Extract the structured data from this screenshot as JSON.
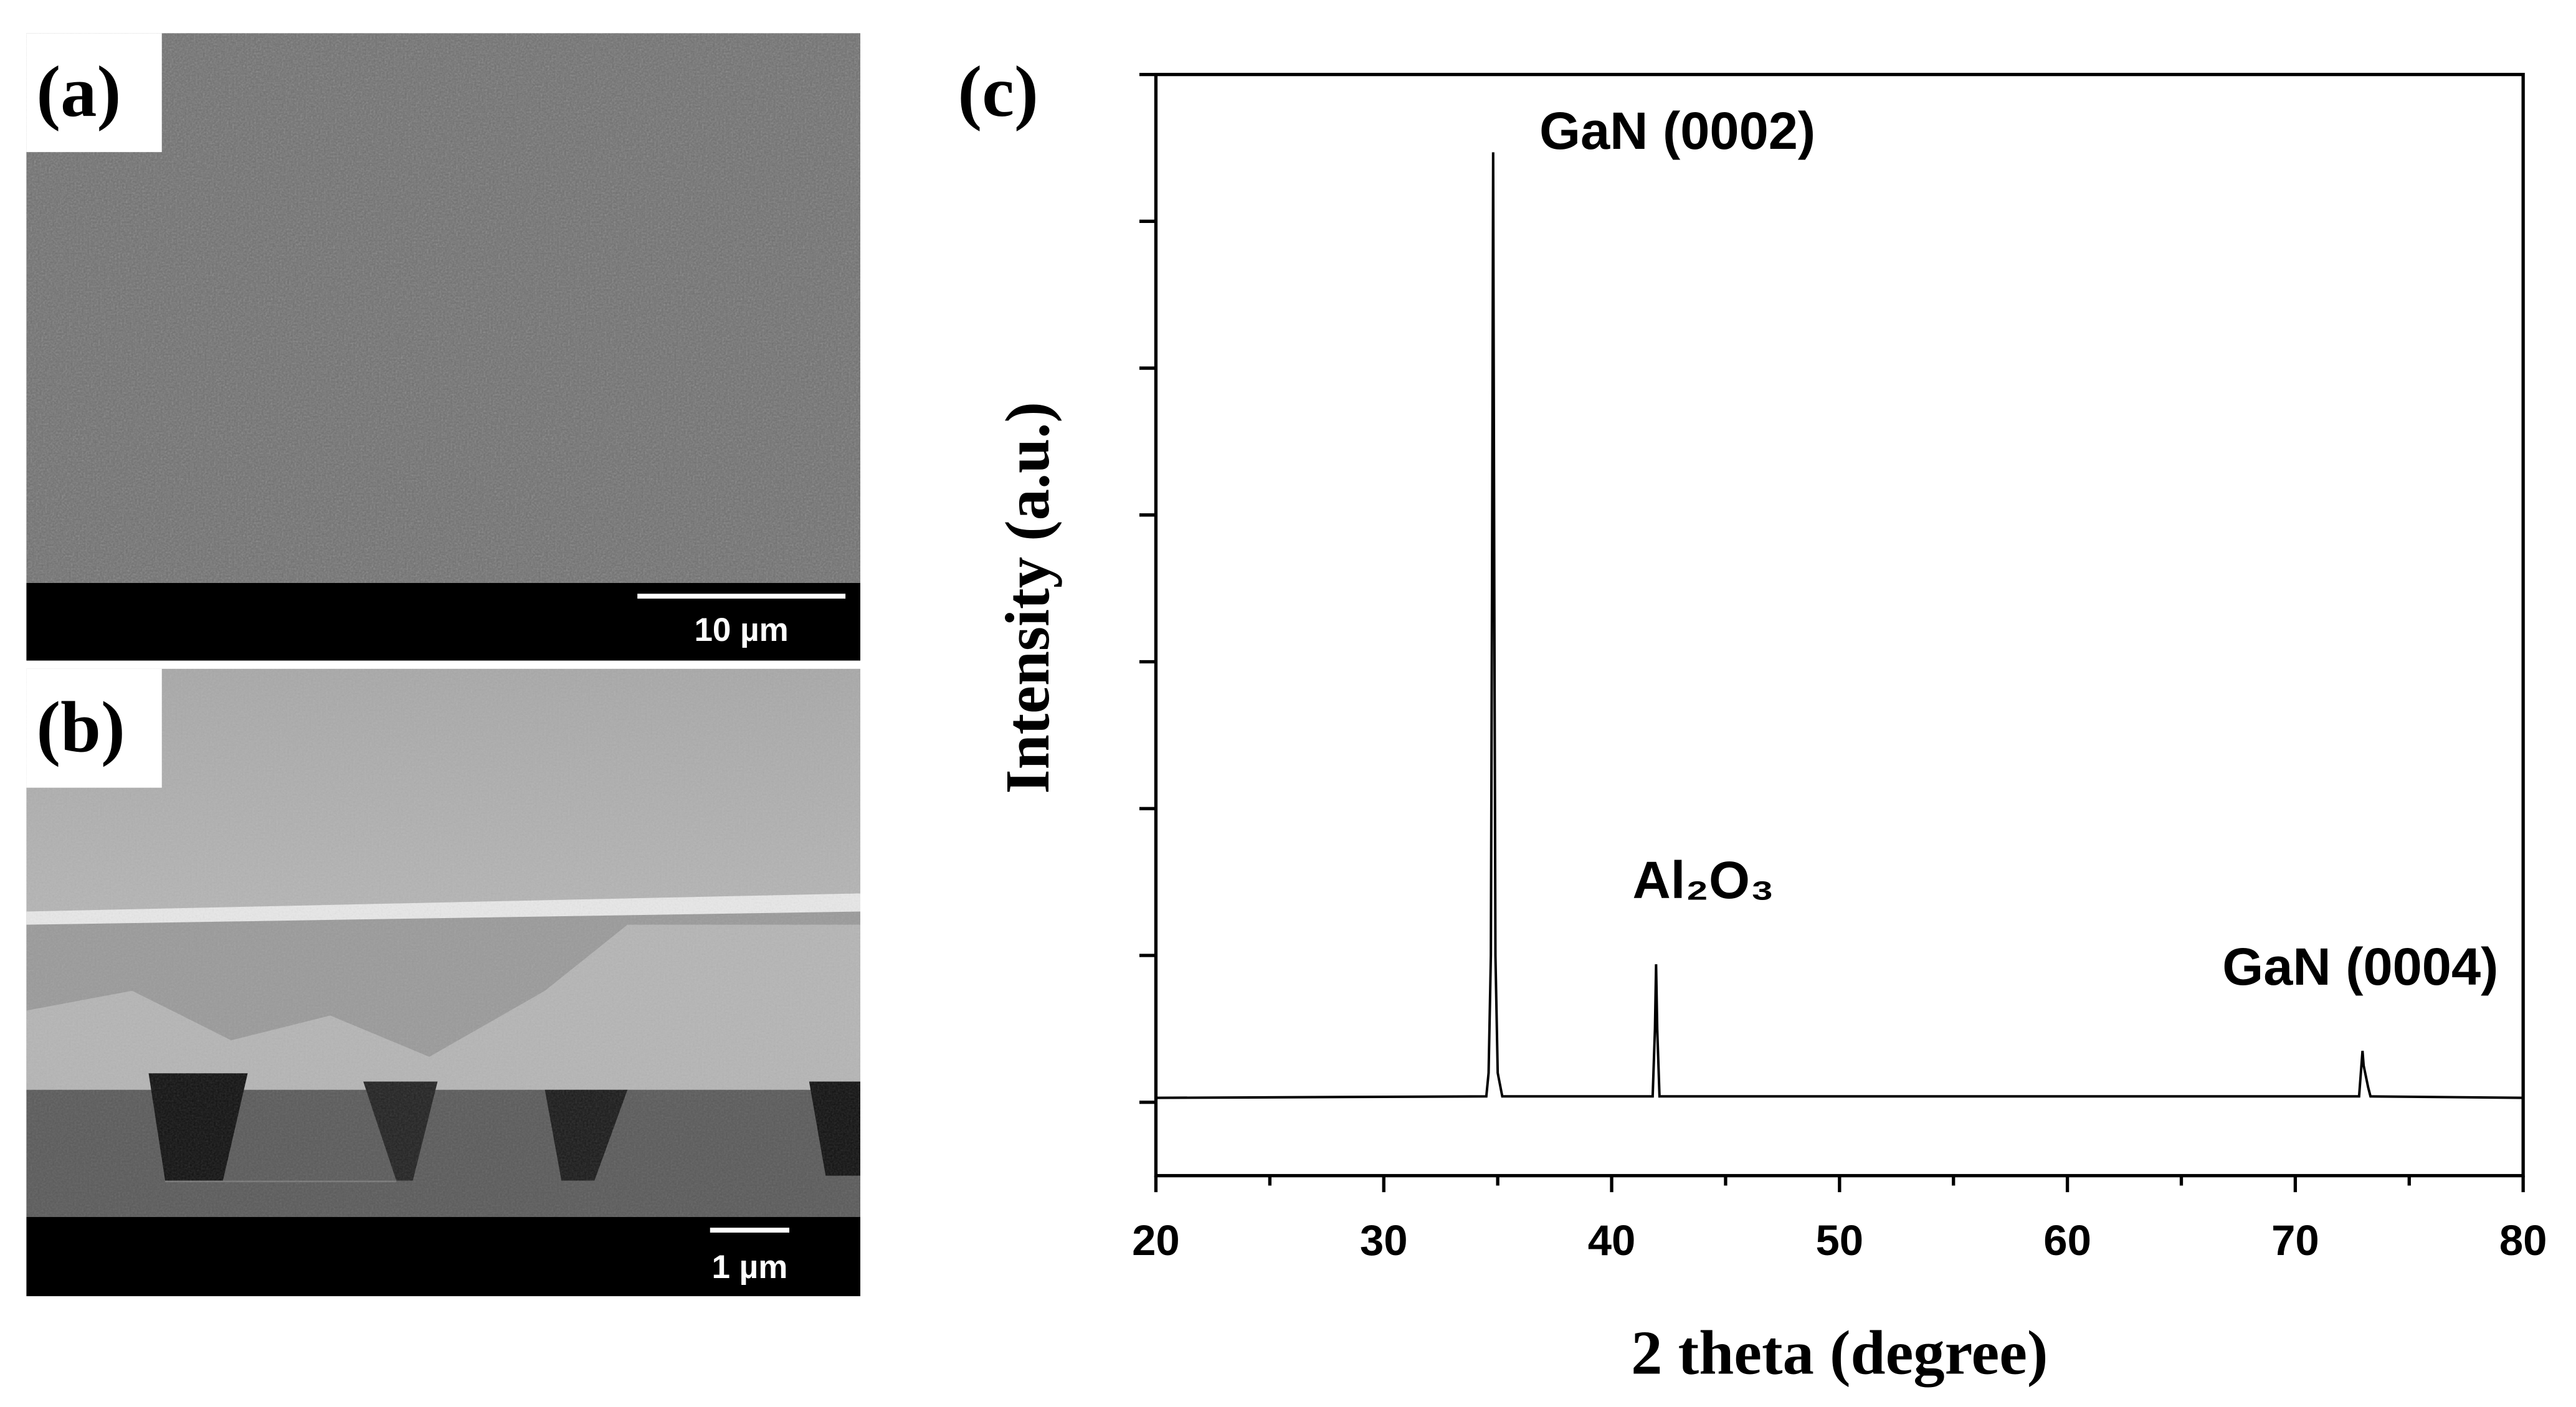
{
  "panels": {
    "a": {
      "label": "(a)",
      "scale_bar": "10 µm"
    },
    "b": {
      "label": "(b)",
      "scale_bar": "1 µm"
    }
  },
  "chart_data": {
    "type": "line",
    "panel_label": "(c)",
    "x_label": "2 theta (degree)",
    "y_label": "Intensity (a.u.)",
    "x": [
      20,
      34.5,
      34.6,
      34.7,
      34.75,
      34.8,
      34.85,
      34.9,
      35.0,
      35.2,
      41.8,
      41.9,
      41.95,
      42.0,
      42.1,
      72.8,
      72.95,
      73.0,
      73.2,
      73.3,
      80
    ],
    "series": [
      {
        "color": "#000000",
        "values": [
          0.03,
          0.04,
          0.2,
          1.0,
          3.5,
          6.47,
          3.5,
          1.0,
          0.2,
          0.04,
          0.04,
          0.5,
          0.94,
          0.5,
          0.04,
          0.04,
          0.35,
          0.25,
          0.1,
          0.04,
          0.03
        ]
      }
    ],
    "annotations": [
      {
        "text": "GaN (0002)",
        "x": 34.8,
        "y": 6.47
      },
      {
        "text": "Al₂O₃",
        "x": 42.0,
        "y": 0.94
      },
      {
        "text": "GaN (0004)",
        "x": 73.0,
        "y": 0.35
      }
    ],
    "xlim": [
      20,
      80
    ],
    "xticks": [
      20,
      30,
      40,
      50,
      60,
      70,
      80
    ],
    "xminorticks": [
      25,
      35,
      45,
      55,
      65,
      75
    ],
    "ylim": [
      -0.5,
      7
    ],
    "yticks": [
      0,
      1,
      2,
      3,
      4,
      5,
      6,
      7
    ],
    "grid": false
  }
}
